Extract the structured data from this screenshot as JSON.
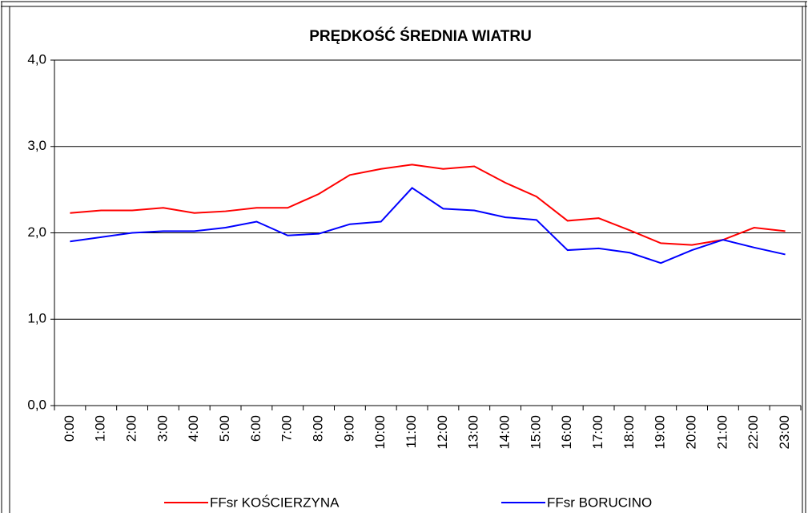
{
  "chart_data": {
    "type": "line",
    "title": "PRĘDKOŚĆ ŚREDNIA WIATRU",
    "categories": [
      "0:00",
      "1:00",
      "2:00",
      "3:00",
      "4:00",
      "5:00",
      "6:00",
      "7:00",
      "8:00",
      "9:00",
      "10:00",
      "11:00",
      "12:00",
      "13:00",
      "14:00",
      "15:00",
      "16:00",
      "17:00",
      "18:00",
      "19:00",
      "20:00",
      "21:00",
      "22:00",
      "23:00"
    ],
    "series": [
      {
        "name": "FFsr KOŚCIERZYNA",
        "color": "#ff0000",
        "values": [
          2.23,
          2.26,
          2.26,
          2.29,
          2.23,
          2.25,
          2.29,
          2.29,
          2.45,
          2.67,
          2.74,
          2.79,
          2.74,
          2.77,
          2.58,
          2.42,
          2.14,
          2.17,
          2.03,
          1.88,
          1.86,
          1.92,
          2.06,
          2.02
        ]
      },
      {
        "name": "FFsr BORUCINO",
        "color": "#0000ff",
        "values": [
          1.9,
          1.95,
          2.0,
          2.02,
          2.02,
          2.06,
          2.13,
          1.97,
          1.99,
          2.1,
          2.13,
          2.52,
          2.28,
          2.26,
          2.18,
          2.15,
          1.8,
          1.82,
          1.77,
          1.65,
          1.8,
          1.92,
          1.83,
          1.75
        ]
      }
    ],
    "ylim": [
      0,
      4
    ],
    "yticks": [
      {
        "value": 0,
        "label": "0,0"
      },
      {
        "value": 1,
        "label": "1,0"
      },
      {
        "value": 2,
        "label": "2,0"
      },
      {
        "value": 3,
        "label": "3,0"
      },
      {
        "value": 4,
        "label": "4,0"
      }
    ],
    "grid": true,
    "legend": "bottom"
  }
}
